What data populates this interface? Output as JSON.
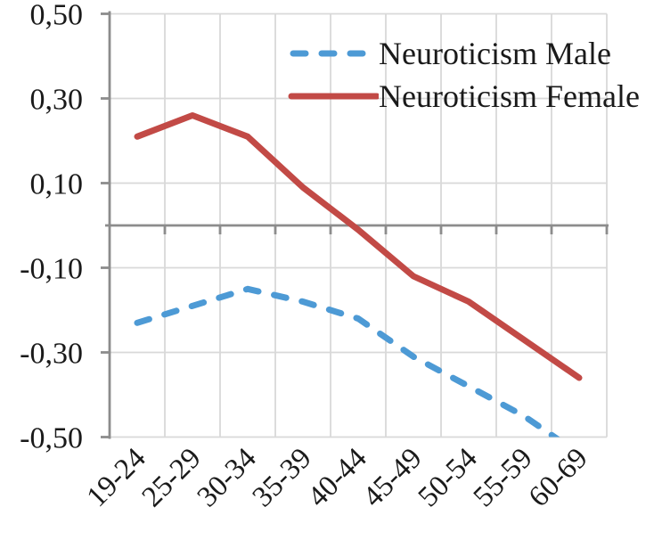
{
  "chart_data": {
    "type": "line",
    "categories": [
      "19-24",
      "25-29",
      "30-34",
      "35-39",
      "40-44",
      "45-49",
      "50-54",
      "55-59",
      "60-69"
    ],
    "series": [
      {
        "name": "Neuroticism Male",
        "values": [
          -0.23,
          -0.19,
          -0.15,
          -0.18,
          -0.22,
          -0.31,
          -0.38,
          -0.45,
          -0.54
        ],
        "color": "#4D9AD5",
        "line_style": "dashed",
        "dash": "14 18"
      },
      {
        "name": "Neuroticism Female",
        "values": [
          0.21,
          0.26,
          0.21,
          0.09,
          -0.01,
          -0.12,
          -0.18,
          -0.27,
          -0.36
        ],
        "color": "#C24A46",
        "line_style": "solid",
        "dash": ""
      }
    ],
    "title": "",
    "xlabel": "",
    "ylabel": "",
    "ylim": [
      -0.5,
      0.5
    ],
    "ytick_step": 0.2,
    "yticks": [
      {
        "value": 0.5,
        "label": "0,50"
      },
      {
        "value": 0.3,
        "label": "0,30"
      },
      {
        "value": 0.1,
        "label": "0,10"
      },
      {
        "value": -0.1,
        "label": "-0,10"
      },
      {
        "value": -0.3,
        "label": "-0,30"
      },
      {
        "value": -0.5,
        "label": "-0,50"
      }
    ],
    "decimal_separator": ",",
    "grid": true,
    "legend_position": "top-right",
    "note": "Male series is clipped by the plot area bottom (-0.50) before the 60-69 category"
  },
  "colors": {
    "gridline": "#D9D9D9",
    "axis": "#8C8C8C",
    "text": "#1A1A1A",
    "background": "#FFFFFF"
  }
}
